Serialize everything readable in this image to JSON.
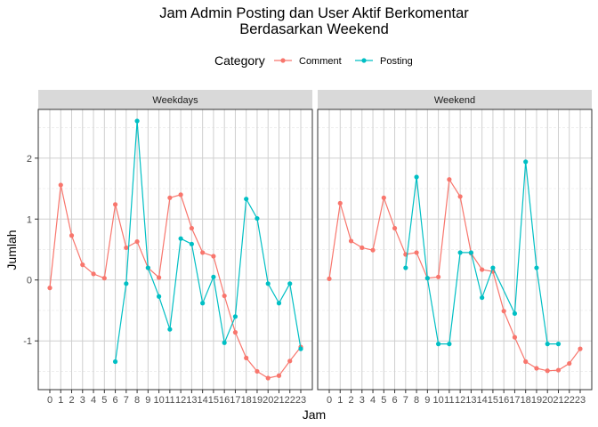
{
  "chart_data": {
    "type": "line",
    "title_line1": "Jam Admin Posting dan User Aktif Berkomentar",
    "title_line2": "Berdasarkan Weekend",
    "xlabel": "Jam",
    "ylabel": "Jumlah",
    "ylim": [
      -1.8,
      2.8
    ],
    "yticks": [
      2,
      1,
      0,
      -1
    ],
    "x_ticks": [
      0,
      1,
      2,
      3,
      4,
      5,
      6,
      7,
      8,
      9,
      10,
      11,
      12,
      13,
      14,
      15,
      16,
      17,
      18,
      19,
      20,
      21,
      22,
      23
    ],
    "legend": {
      "title": "Category",
      "placement": "top",
      "items": [
        {
          "label": "Comment",
          "color": "#F8766D"
        },
        {
          "label": "Posting",
          "color": "#00BFC4"
        }
      ]
    },
    "grid": true,
    "panels": [
      {
        "label": "Weekdays",
        "series": [
          {
            "name": "Comment",
            "color": "#F8766D",
            "x": [
              0,
              1,
              2,
              3,
              4,
              5,
              6,
              7,
              8,
              9,
              10,
              11,
              12,
              13,
              14,
              15,
              16,
              17,
              18,
              19,
              20,
              21,
              22,
              23
            ],
            "y": [
              -0.13,
              1.56,
              0.73,
              0.25,
              0.1,
              0.03,
              1.24,
              0.53,
              0.63,
              0.2,
              0.04,
              1.35,
              1.4,
              0.85,
              0.45,
              0.39,
              -0.26,
              -0.86,
              -1.28,
              -1.5,
              -1.61,
              -1.57,
              -1.33,
              -1.1
            ]
          },
          {
            "name": "Posting",
            "color": "#00BFC4",
            "x": [
              6,
              7,
              8,
              9,
              10,
              11,
              12,
              13,
              14,
              15,
              16,
              17,
              18,
              19,
              20,
              21,
              22,
              23
            ],
            "y": [
              -1.34,
              -0.06,
              2.61,
              0.2,
              -0.27,
              -0.81,
              0.68,
              0.59,
              -0.38,
              0.05,
              -1.03,
              -0.6,
              1.33,
              1.01,
              -0.06,
              -0.38,
              -0.06,
              -1.13
            ]
          }
        ]
      },
      {
        "label": "Weekend",
        "series": [
          {
            "name": "Comment",
            "color": "#F8766D",
            "x": [
              0,
              1,
              2,
              3,
              4,
              5,
              6,
              7,
              8,
              9,
              10,
              11,
              12,
              13,
              14,
              15,
              16,
              17,
              18,
              19,
              20,
              21,
              22,
              23
            ],
            "y": [
              0.02,
              1.26,
              0.64,
              0.53,
              0.49,
              1.35,
              0.85,
              0.42,
              0.45,
              0.03,
              0.05,
              1.65,
              1.37,
              0.44,
              0.17,
              0.14,
              -0.51,
              -0.94,
              -1.34,
              -1.45,
              -1.49,
              -1.48,
              -1.37,
              -1.13
            ]
          },
          {
            "name": "Posting",
            "color": "#00BFC4",
            "x": [
              7,
              8,
              9,
              10,
              11,
              12,
              13,
              14,
              15,
              17,
              18,
              19,
              20,
              21
            ],
            "y": [
              0.2,
              1.69,
              0.03,
              -1.05,
              -1.05,
              0.45,
              0.45,
              -0.29,
              0.2,
              -0.55,
              1.94,
              0.2,
              -1.05,
              -1.05
            ]
          }
        ]
      }
    ]
  }
}
